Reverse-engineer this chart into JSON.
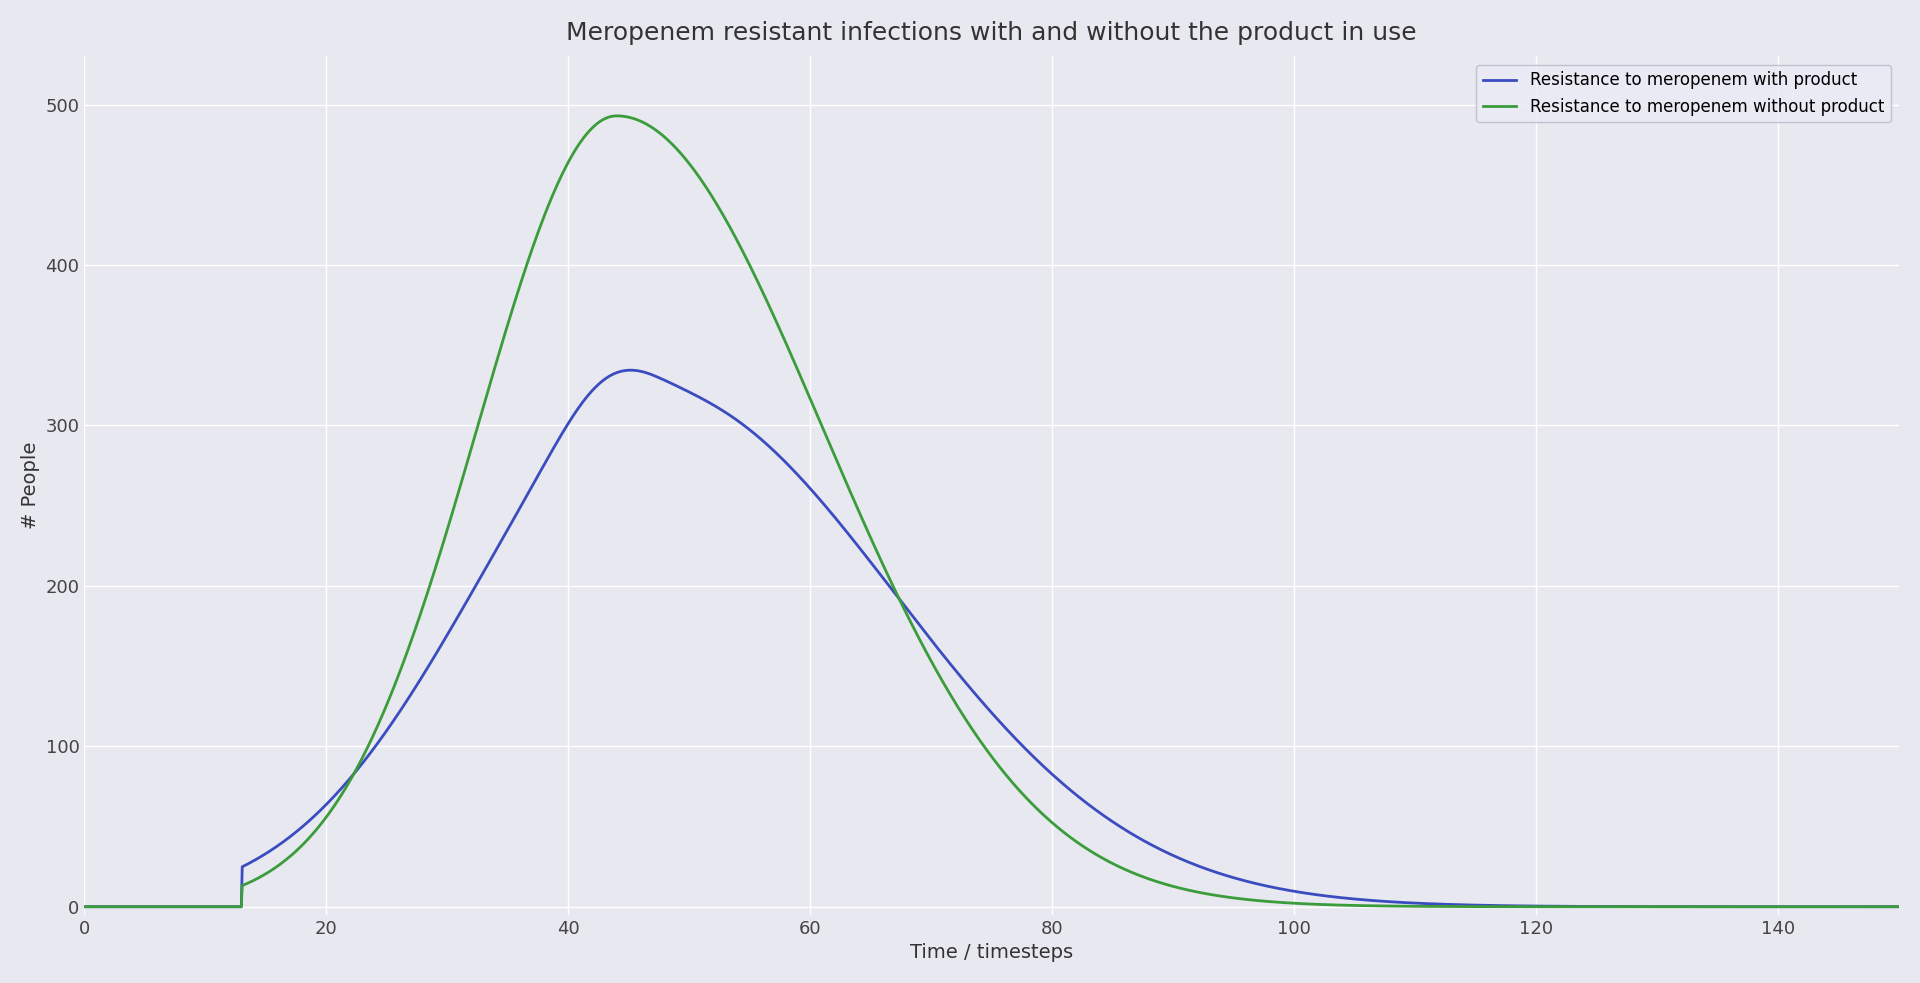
{
  "title": "Meropenem resistant infections with and without the product in use",
  "xlabel": "Time / timesteps",
  "ylabel": "# People",
  "xlim": [
    0,
    150
  ],
  "ylim": [
    -5,
    530
  ],
  "xticks": [
    0,
    20,
    40,
    60,
    80,
    100,
    120,
    140
  ],
  "yticks": [
    0,
    100,
    200,
    300,
    400,
    500
  ],
  "line_with_product_color": "#3b4cc0",
  "line_without_product_color": "#3a9c3a",
  "legend_labels": [
    "Resistance to meropenem with product",
    "Resistance to meropenem without product"
  ],
  "axes_facecolor": "#e8e8f0",
  "figure_facecolor": "#e8e8f0",
  "grid_color": "#ffffff",
  "title_fontsize": 18,
  "label_fontsize": 14,
  "tick_fontsize": 13,
  "linewidth": 2.0
}
